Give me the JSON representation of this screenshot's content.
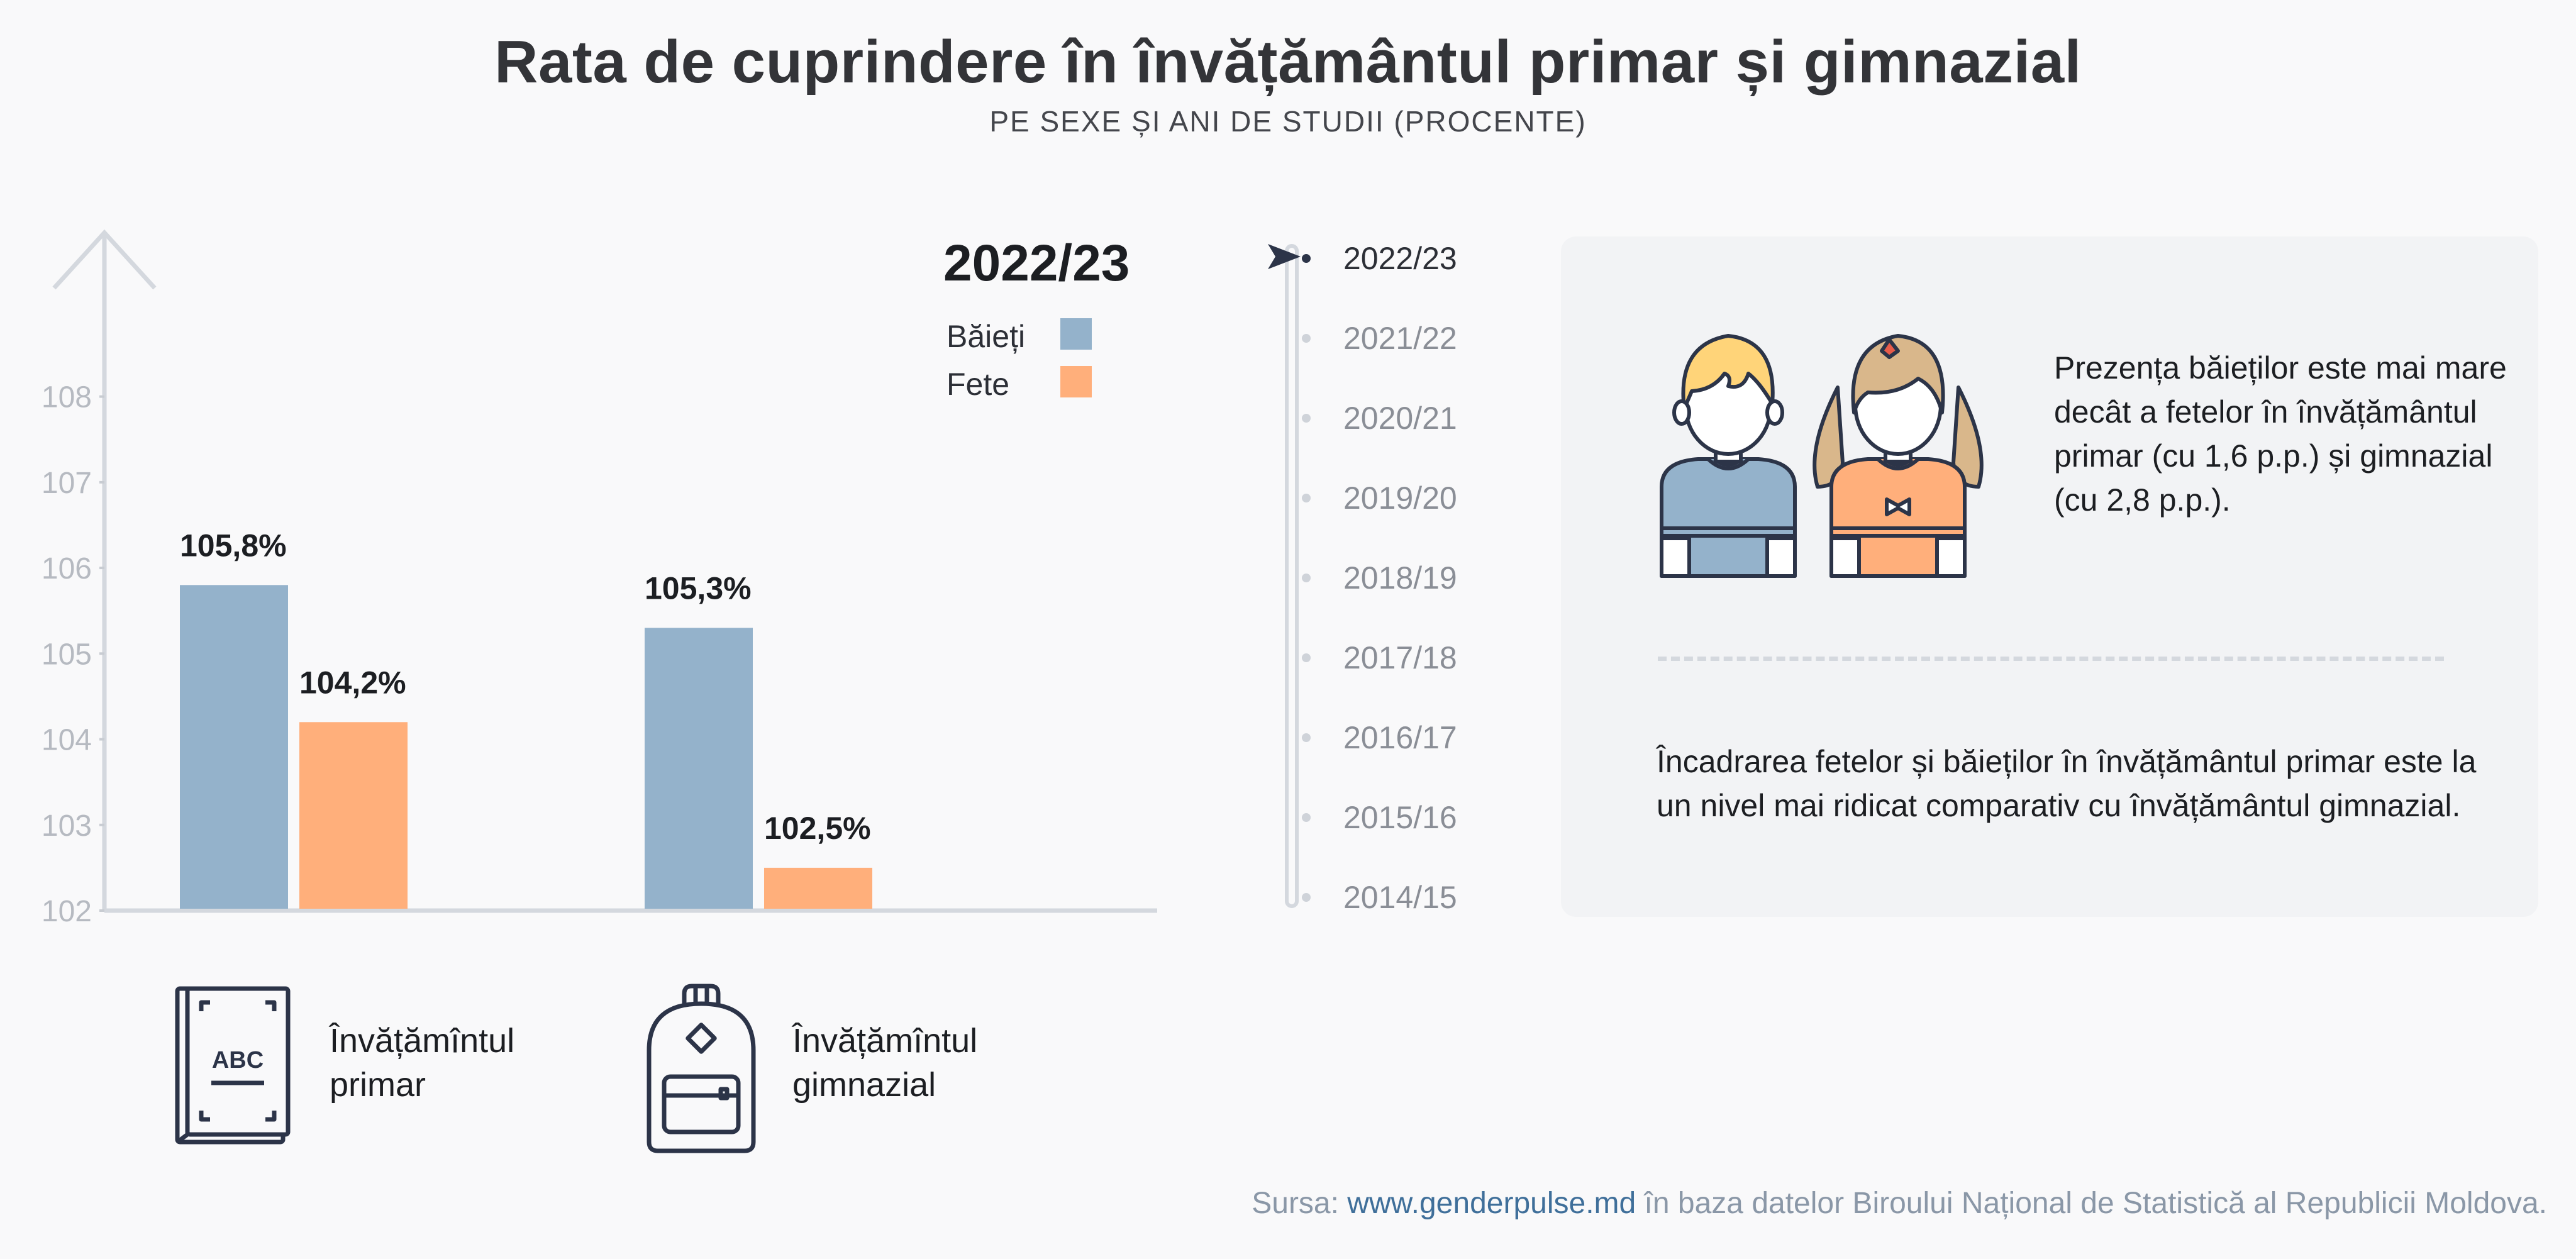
{
  "header": {
    "title": "Rata de cuprindere în învățământul primar și gimnazial",
    "subtitle": "PE SEXE ȘI ANI DE STUDII (PROCENTE)"
  },
  "legend": {
    "year": "2022/23",
    "items": [
      {
        "label": "Băieți",
        "color": "#94b2cb"
      },
      {
        "label": "Fete",
        "color": "#ffaf7b"
      }
    ]
  },
  "categories_display": [
    {
      "line1": "Învățămîntul",
      "line2": "primar",
      "icon": "abc-book-icon"
    },
    {
      "line1": "Învățămîntul",
      "line2": "gimnazial",
      "icon": "backpack-icon"
    }
  ],
  "chart_data": {
    "type": "bar",
    "title": "Rata de cuprindere în învățământul primar și gimnazial",
    "subtitle": "PE SEXE ȘI ANI DE STUDII (PROCENTE)",
    "year": "2022/23",
    "categories": [
      "Învățămîntul primar",
      "Învățămîntul gimnazial"
    ],
    "series": [
      {
        "name": "Băieți",
        "values": [
          105.8,
          105.3
        ],
        "labels": [
          "105,8%",
          "105,3%"
        ],
        "color": "#94b2cb"
      },
      {
        "name": "Fete",
        "values": [
          104.2,
          102.5
        ],
        "labels": [
          "104,2%",
          "102,5%"
        ],
        "color": "#ffaf7b"
      }
    ],
    "yticks": [
      102,
      103,
      104,
      105,
      106,
      107,
      108
    ],
    "ylim": [
      102,
      108.9
    ],
    "grid": false,
    "legend_position": "top-right"
  },
  "timeline": {
    "active": "2022/23",
    "years": [
      "2022/23",
      "2021/22",
      "2020/21",
      "2019/20",
      "2018/19",
      "2017/18",
      "2016/17",
      "2015/16",
      "2014/15"
    ]
  },
  "info": {
    "text1": "Prezența băieților este mai mare decât a fetelor în învățământul primar (cu 1,6 p.p.) și gimnazial (cu 2,8 p.p.).",
    "text2": "Încadrarea fetelor și băieților în învățământul primar este la un nivel mai ridicat comparativ cu învățământul gimnazial."
  },
  "source": {
    "prefix": "Sursa: ",
    "link": "www.genderpulse.md",
    "suffix": " în baza datelor Biroului Național de Statistică al Republicii Moldova."
  }
}
